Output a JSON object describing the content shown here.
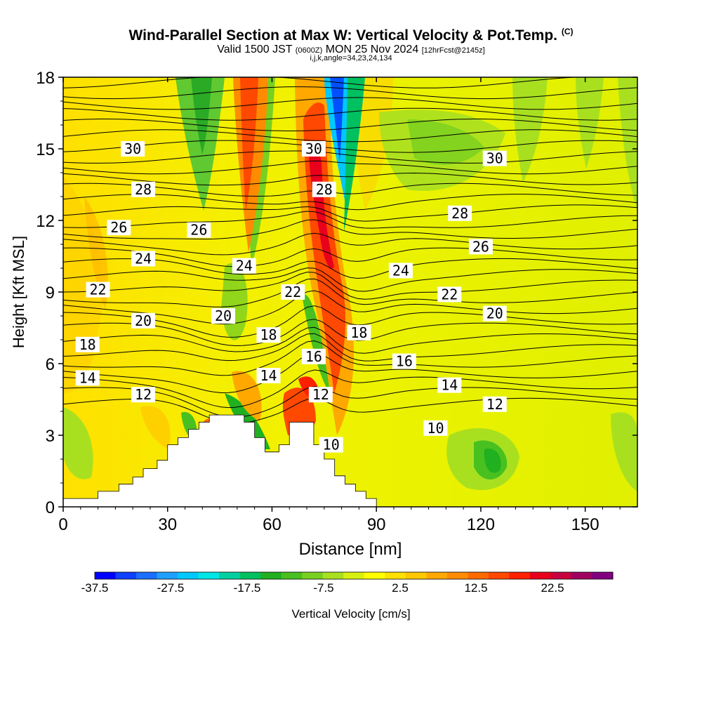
{
  "title": {
    "line1": "Wind-Parallel Section at Max W: Vertical Velocity & Pot.Temp.",
    "copyright": "(C)",
    "line2_main": "Valid 1500 JST",
    "line2_utc": "(0600Z)",
    "line2_date": "MON 25 Nov 2024",
    "line2_fcst": "[12hrFcst@2145z]",
    "line3": "i,j,k,angle=34,23,24,134"
  },
  "colorbar": {
    "label": "Vertical Velocity [cm/s]",
    "tick_labels": [
      "-37.5",
      "-27.5",
      "-17.5",
      "-7.5",
      "2.5",
      "12.5",
      "22.5"
    ],
    "colors": [
      "#0000ff",
      "#1040ff",
      "#1b6fff",
      "#1ea0ff",
      "#00c8ff",
      "#00e5e5",
      "#00d0a0",
      "#00c060",
      "#20b020",
      "#48c020",
      "#78d020",
      "#a8e020",
      "#d8f010",
      "#ffff00",
      "#ffe000",
      "#ffc800",
      "#ffa800",
      "#ff8c00",
      "#ff6a00",
      "#ff4800",
      "#ff2000",
      "#e8001c",
      "#c80040",
      "#a00060",
      "#800080"
    ]
  },
  "chart_data": {
    "type": "heatmap",
    "xlabel": "Distance [nm]",
    "ylabel": "Height [Kft MSL]",
    "xlim": [
      0,
      165
    ],
    "ylim": [
      0,
      18
    ],
    "x_ticks": [
      0,
      30,
      60,
      90,
      120,
      150
    ],
    "y_ticks": [
      0,
      3,
      6,
      9,
      12,
      15,
      18
    ],
    "filled_field": "Vertical Velocity [cm/s]",
    "contour_field": "Potential Temperature",
    "contour_labels": [
      {
        "value": 30,
        "x": 20,
        "y": 15.0
      },
      {
        "value": 28,
        "x": 23,
        "y": 13.3
      },
      {
        "value": 26,
        "x": 16,
        "y": 11.7
      },
      {
        "value": 24,
        "x": 23,
        "y": 10.4
      },
      {
        "value": 22,
        "x": 10,
        "y": 9.1
      },
      {
        "value": 20,
        "x": 23,
        "y": 7.8
      },
      {
        "value": 18,
        "x": 7,
        "y": 6.8
      },
      {
        "value": 14,
        "x": 7,
        "y": 5.4
      },
      {
        "value": 12,
        "x": 23,
        "y": 4.7
      },
      {
        "value": 26,
        "x": 39,
        "y": 11.6
      },
      {
        "value": 24,
        "x": 52,
        "y": 10.1
      },
      {
        "value": 20,
        "x": 46,
        "y": 8.0
      },
      {
        "value": 22,
        "x": 66,
        "y": 9.0
      },
      {
        "value": 18,
        "x": 59,
        "y": 7.2
      },
      {
        "value": 14,
        "x": 59,
        "y": 5.5
      },
      {
        "value": 30,
        "x": 72,
        "y": 15.0
      },
      {
        "value": 28,
        "x": 75,
        "y": 13.3
      },
      {
        "value": 16,
        "x": 72,
        "y": 6.3
      },
      {
        "value": 12,
        "x": 74,
        "y": 4.7
      },
      {
        "value": 10,
        "x": 77,
        "y": 2.6
      },
      {
        "value": 18,
        "x": 85,
        "y": 7.3
      },
      {
        "value": 24,
        "x": 97,
        "y": 9.9
      },
      {
        "value": 22,
        "x": 111,
        "y": 8.9
      },
      {
        "value": 16,
        "x": 98,
        "y": 6.1
      },
      {
        "value": 14,
        "x": 111,
        "y": 5.1
      },
      {
        "value": 10,
        "x": 107,
        "y": 3.3
      },
      {
        "value": 28,
        "x": 114,
        "y": 12.3
      },
      {
        "value": 30,
        "x": 124,
        "y": 14.6
      },
      {
        "value": 26,
        "x": 120,
        "y": 10.9
      },
      {
        "value": 20,
        "x": 124,
        "y": 8.1
      },
      {
        "value": 12,
        "x": 124,
        "y": 4.3
      }
    ],
    "terrain_steps": [
      [
        0,
        0.35
      ],
      [
        10,
        0.35
      ],
      [
        10,
        0.65
      ],
      [
        16,
        0.65
      ],
      [
        16,
        0.95
      ],
      [
        20,
        0.95
      ],
      [
        20,
        1.25
      ],
      [
        23,
        1.25
      ],
      [
        23,
        1.6
      ],
      [
        27,
        1.6
      ],
      [
        27,
        1.95
      ],
      [
        30,
        1.95
      ],
      [
        30,
        2.6
      ],
      [
        33,
        2.6
      ],
      [
        33,
        2.9
      ],
      [
        36,
        2.9
      ],
      [
        36,
        3.25
      ],
      [
        39,
        3.25
      ],
      [
        39,
        3.55
      ],
      [
        42,
        3.55
      ],
      [
        42,
        3.85
      ],
      [
        52,
        3.85
      ],
      [
        52,
        3.55
      ],
      [
        55,
        3.55
      ],
      [
        55,
        2.9
      ],
      [
        58,
        2.9
      ],
      [
        58,
        2.3
      ],
      [
        62,
        2.3
      ],
      [
        62,
        2.6
      ],
      [
        65,
        2.6
      ],
      [
        65,
        3.55
      ],
      [
        72,
        3.55
      ],
      [
        72,
        2.6
      ],
      [
        75,
        2.6
      ],
      [
        75,
        2.0
      ],
      [
        78,
        2.0
      ],
      [
        78,
        1.3
      ],
      [
        81,
        1.3
      ],
      [
        81,
        0.95
      ],
      [
        84,
        0.95
      ],
      [
        84,
        0.65
      ],
      [
        87,
        0.65
      ],
      [
        87,
        0.35
      ],
      [
        90,
        0.35
      ],
      [
        90,
        0.0
      ]
    ]
  }
}
